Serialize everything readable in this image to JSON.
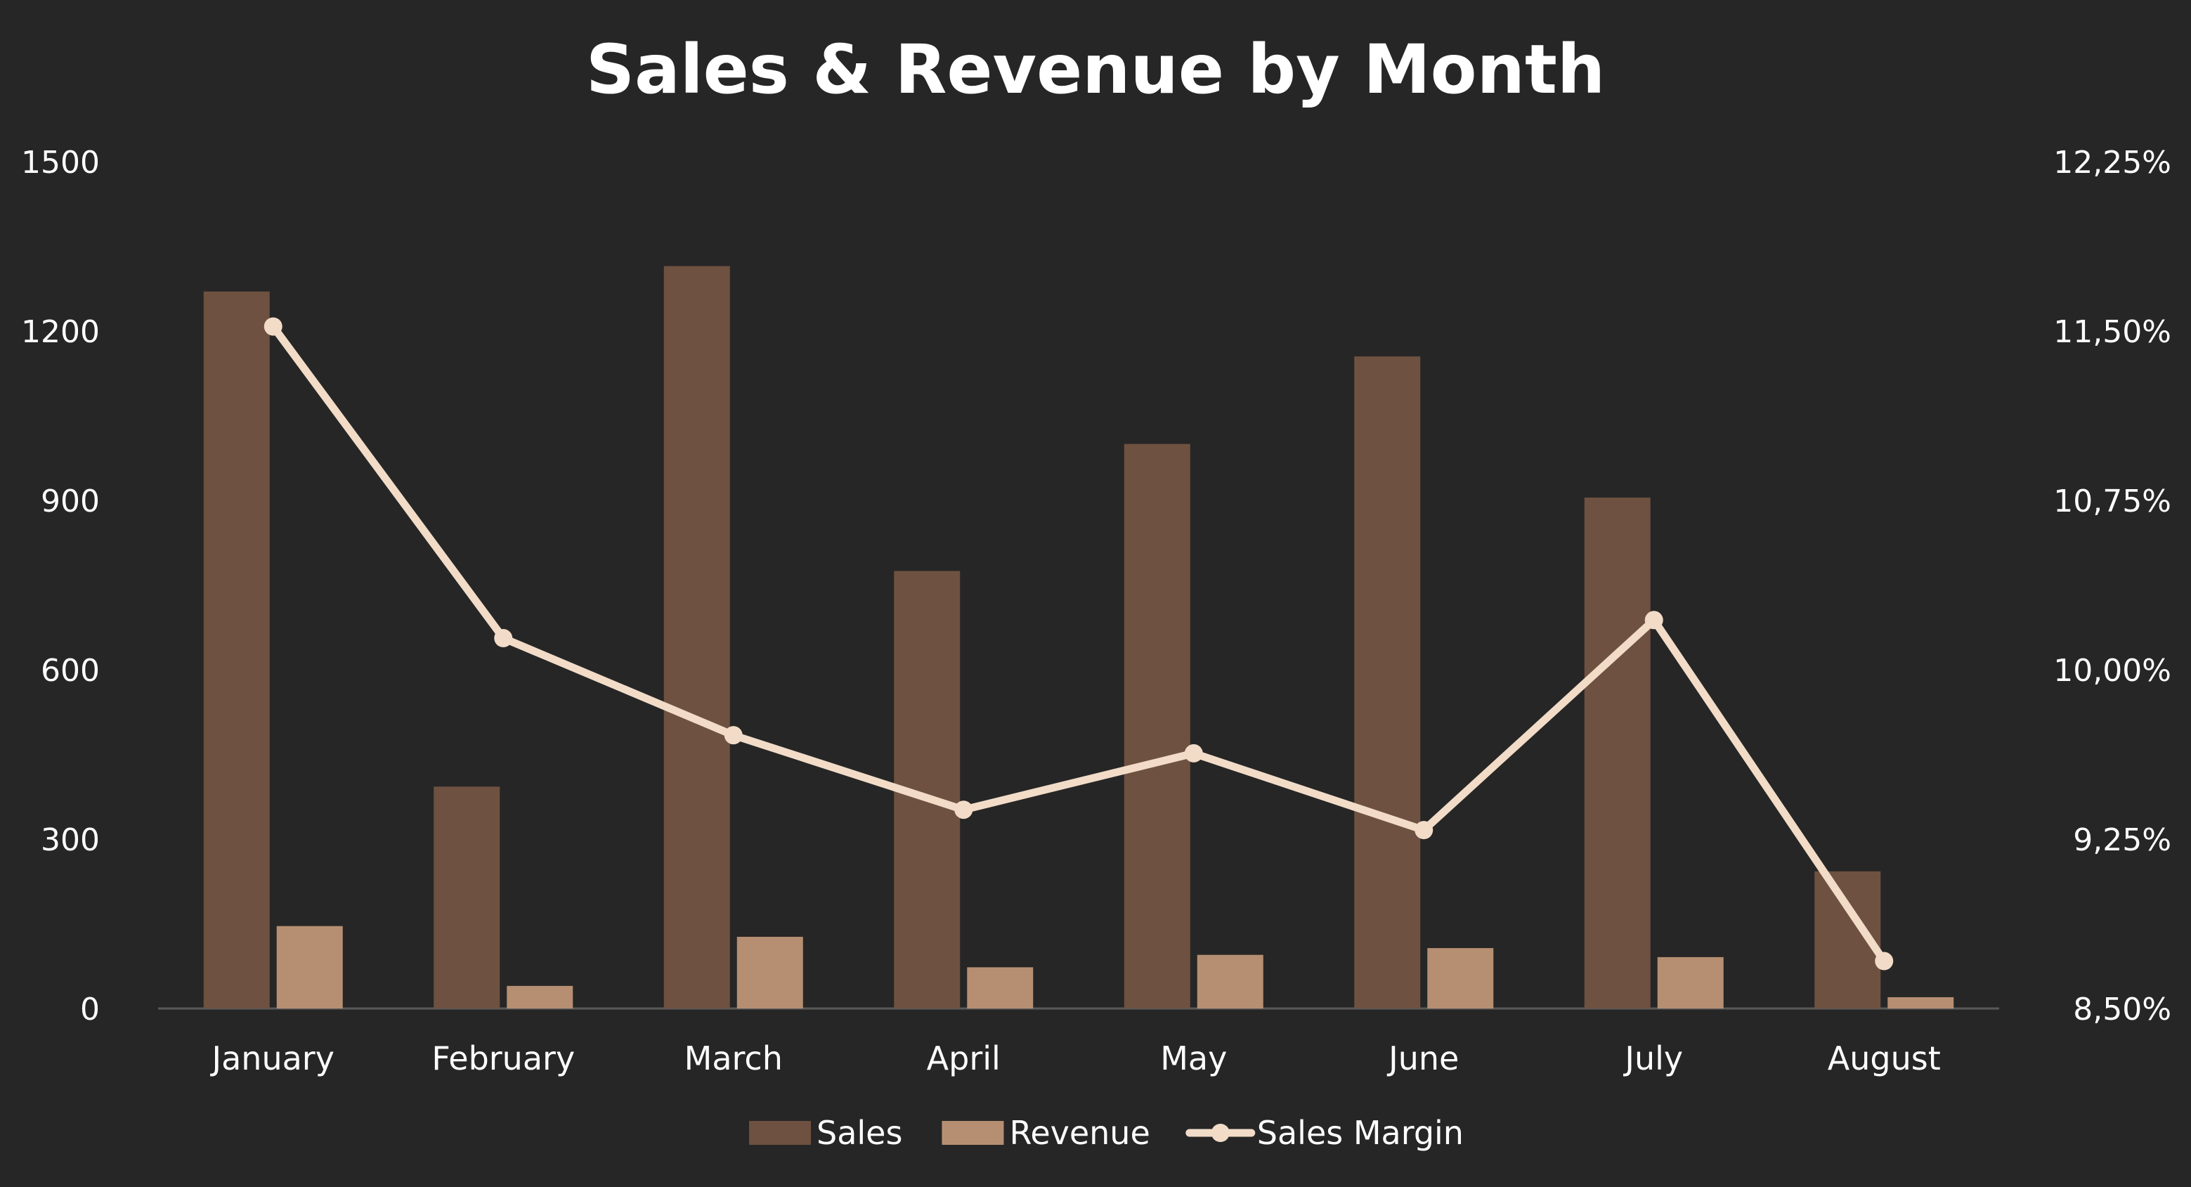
{
  "chart_data": {
    "type": "bar",
    "title": "Sales & Revenue by Month",
    "categories": [
      "January",
      "February",
      "March",
      "April",
      "May",
      "June",
      "July",
      "August"
    ],
    "series": [
      {
        "name": "Sales",
        "type": "bar",
        "axis": "left",
        "color": "#6e5140",
        "values": [
          1270,
          393,
          1315,
          775,
          1000,
          1155,
          905,
          243
        ]
      },
      {
        "name": "Revenue",
        "type": "bar",
        "axis": "left",
        "color": "#b68f72",
        "values": [
          146,
          40,
          127,
          73,
          95,
          107,
          91,
          20
        ]
      },
      {
        "name": "Sales Margin",
        "type": "line",
        "axis": "right",
        "color": "#f2dcc8",
        "values": [
          11.52,
          10.14,
          9.71,
          9.38,
          9.63,
          9.29,
          10.22,
          8.71
        ]
      }
    ],
    "y_left": {
      "range": [
        0,
        1500
      ],
      "ticks": [
        0,
        300,
        600,
        900,
        1200,
        1500
      ],
      "tick_labels": [
        "0",
        "300",
        "600",
        "900",
        "1200",
        "1500"
      ]
    },
    "y_right": {
      "range": [
        8.5,
        12.25
      ],
      "ticks": [
        8.5,
        9.25,
        10.0,
        10.75,
        11.5,
        12.25
      ],
      "tick_labels": [
        "8,50%",
        "9,25%",
        "10,00%",
        "10,75%",
        "11,50%",
        "12,25%"
      ]
    },
    "xlabel": "",
    "ylabel": "",
    "grid": false,
    "legend": {
      "position": "bottom",
      "entries": [
        "Sales",
        "Revenue",
        "Sales Margin"
      ]
    },
    "colors": {
      "background": "#262626",
      "text": "#ffffff",
      "axis_line": "#595959"
    }
  }
}
